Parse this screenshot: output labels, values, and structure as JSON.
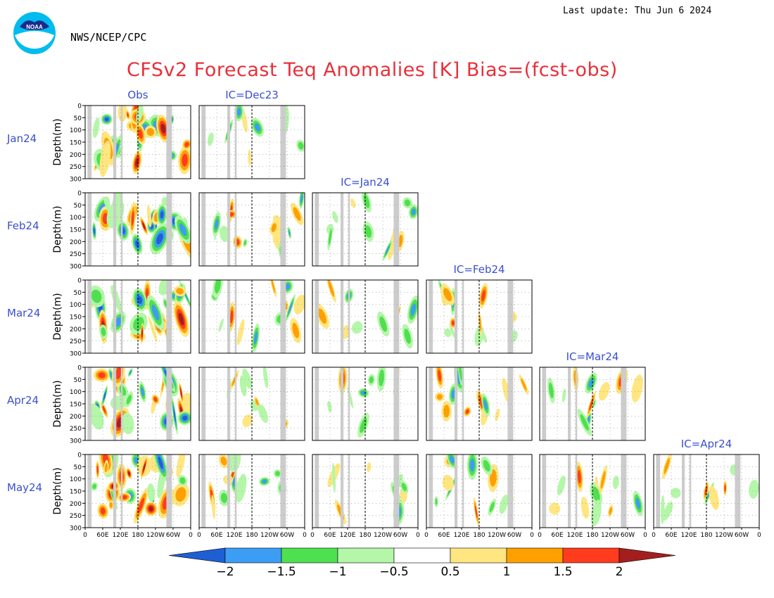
{
  "header": {
    "last_update": "Last update: Thu Jun  6 2024",
    "org": "NWS/NCEP/CPC",
    "title": "CFSv2 Forecast Teq Anomalies [K] Bias=(fcst-obs)",
    "logo_text": "NOAA"
  },
  "chart_data": {
    "type": "heatmap",
    "title": "CFSv2 Forecast Teq Anomalies [K] Bias=(fcst-obs)",
    "ylabel": "Depth(m)",
    "yticks": [
      0,
      50,
      100,
      150,
      200,
      250,
      300
    ],
    "ylim": [
      0,
      300
    ],
    "xtick_labels": [
      "0",
      "60E",
      "120E",
      "180",
      "120W",
      "60W",
      "0"
    ],
    "rows": [
      "Jan24",
      "Feb24",
      "Mar24",
      "Apr24",
      "May24"
    ],
    "columns": [
      "Obs",
      "IC=Dec23",
      "IC=Jan24",
      "IC=Feb24",
      "IC=Mar24",
      "IC=Apr24"
    ],
    "colorbar": {
      "levels": [
        -2,
        -1.5,
        -1,
        -0.5,
        0.5,
        1,
        1.5,
        2
      ],
      "level_labels": [
        "−2",
        "−1.5",
        "−1",
        "−0.5",
        "0.5",
        "1",
        "1.5",
        "2"
      ],
      "colors": [
        "#1f5fd4",
        "#3c9df5",
        "#4fe04f",
        "#b4f7a8",
        "#ffffff",
        "#ffe680",
        "#ffa000",
        "#ff3c1e",
        "#a51e1e"
      ]
    },
    "land_color": "#cccccc"
  }
}
